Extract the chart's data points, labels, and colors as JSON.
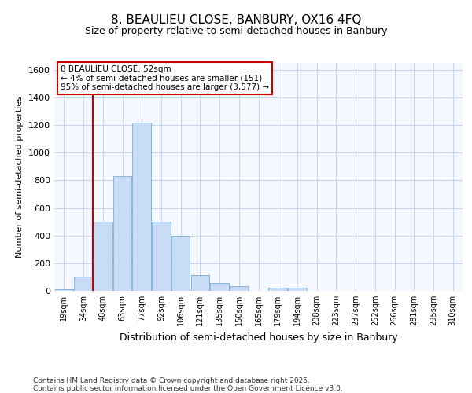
{
  "title1": "8, BEAULIEU CLOSE, BANBURY, OX16 4FQ",
  "title2": "Size of property relative to semi-detached houses in Banbury",
  "xlabel": "Distribution of semi-detached houses by size in Banbury",
  "ylabel": "Number of semi-detached properties",
  "categories": [
    "19sqm",
    "34sqm",
    "48sqm",
    "63sqm",
    "77sqm",
    "92sqm",
    "106sqm",
    "121sqm",
    "135sqm",
    "150sqm",
    "165sqm",
    "179sqm",
    "194sqm",
    "208sqm",
    "223sqm",
    "237sqm",
    "252sqm",
    "266sqm",
    "281sqm",
    "295sqm",
    "310sqm"
  ],
  "values": [
    10,
    100,
    500,
    830,
    1220,
    500,
    400,
    115,
    55,
    35,
    0,
    25,
    20,
    0,
    0,
    0,
    0,
    0,
    0,
    0,
    0
  ],
  "bar_color": "#c8dcf5",
  "bar_edge_color": "#7aadd4",
  "vline_x_idx": 2.0,
  "vline_color": "#cc0000",
  "annotation_title": "8 BEAULIEU CLOSE: 52sqm",
  "annotation_line1": "← 4% of semi-detached houses are smaller (151)",
  "annotation_line2": "95% of semi-detached houses are larger (3,577) →",
  "annotation_border_color": "#cc0000",
  "ylim": [
    0,
    1650
  ],
  "yticks": [
    0,
    200,
    400,
    600,
    800,
    1000,
    1200,
    1400,
    1600
  ],
  "footer1": "Contains HM Land Registry data © Crown copyright and database right 2025.",
  "footer2": "Contains public sector information licensed under the Open Government Licence v3.0.",
  "bg_color": "#ffffff",
  "plot_bg_color": "#f5f8ff",
  "grid_color": "#c8d4f0"
}
